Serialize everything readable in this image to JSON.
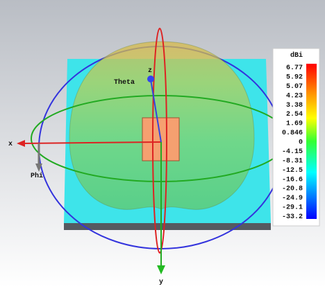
{
  "axes": {
    "x": "x",
    "y": "y",
    "z": "z",
    "theta": "Theta",
    "phi": "Phi"
  },
  "colorbar": {
    "unit": "dBi",
    "labels": [
      "6.77",
      "5.92",
      "5.07",
      "4.23",
      "3.38",
      "2.54",
      "1.69",
      "0.846",
      "0",
      "-4.15",
      "-8.31",
      "-12.5",
      "-16.6",
      "-20.8",
      "-24.9",
      "-29.1",
      "-33.2"
    ]
  }
}
